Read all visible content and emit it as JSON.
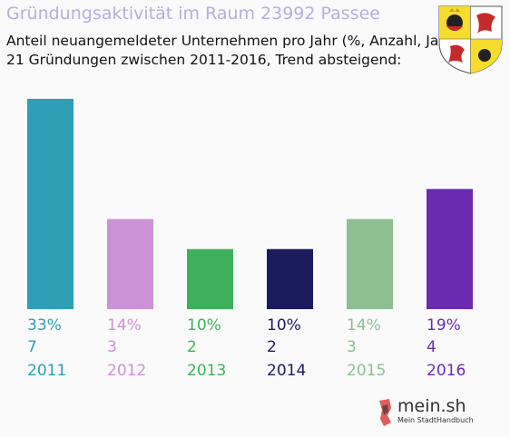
{
  "header": {
    "title": "Gründungsaktivität im Raum 23992 Passee",
    "subtitle_line1": "Anteil neuangemeldeter Unternehmen pro Jahr (%, Anzahl, Jahr)",
    "subtitle_line2": "21 Gründungen zwischen 2011-2016, Trend absteigend:"
  },
  "footer": {
    "logo_text": "mein.sh",
    "logo_subtext": "Mein StadtHandbuch"
  },
  "colors": {
    "title": "#b6aee0",
    "bars": [
      "#2e9fb4",
      "#cc92d6",
      "#3db05c",
      "#1a1c5e",
      "#8dbf93",
      "#6a2bb0"
    ]
  },
  "chart_data": {
    "type": "bar",
    "categories": [
      "2011",
      "2012",
      "2013",
      "2014",
      "2015",
      "2016"
    ],
    "percent_labels": [
      "33%",
      "14%",
      "10%",
      "10%",
      "14%",
      "19%"
    ],
    "values": [
      7,
      3,
      2,
      2,
      3,
      4
    ],
    "title": "Gründungsaktivität im Raum 23992 Passee",
    "xlabel": "",
    "ylabel": "",
    "ylim": [
      0,
      7
    ],
    "grid": false,
    "legend": "none"
  }
}
